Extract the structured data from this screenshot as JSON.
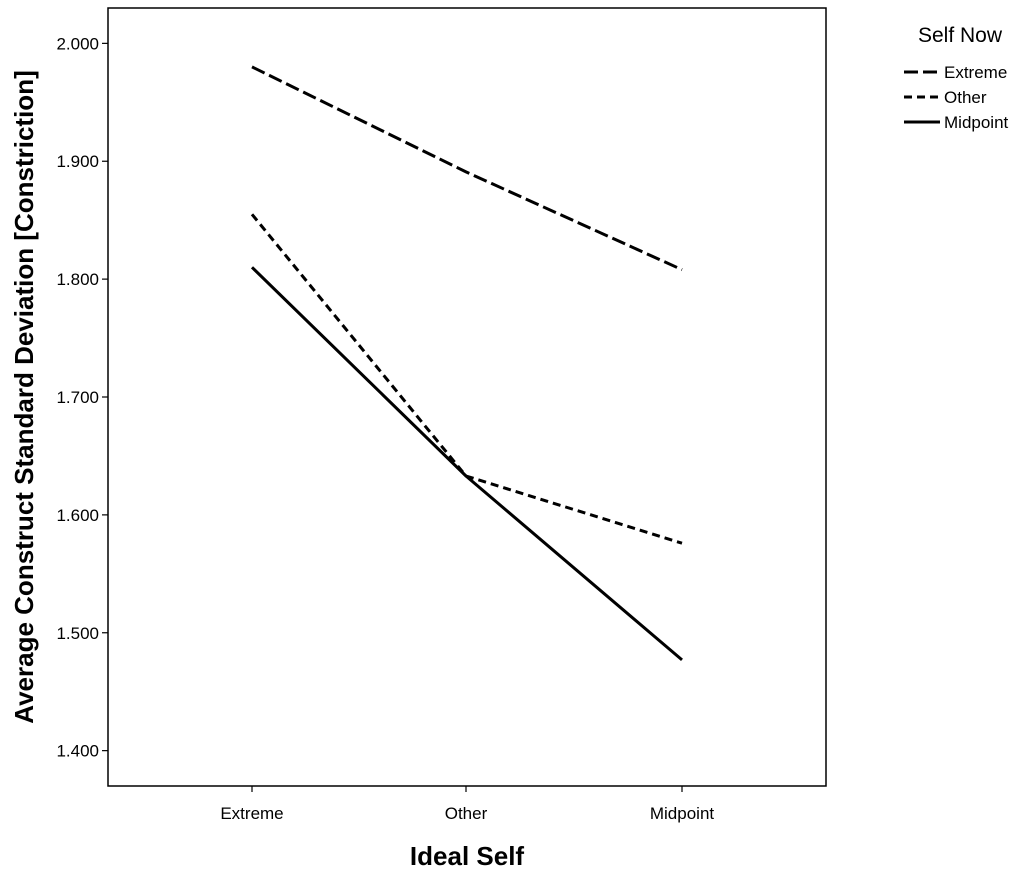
{
  "chart_data": {
    "type": "line",
    "title": "",
    "xlabel": "Ideal Self",
    "ylabel": "Average Construct Standard Deviation [Constriction]",
    "categories": [
      "Extreme",
      "Other",
      "Midpoint"
    ],
    "ylim": [
      1.37,
      2.03
    ],
    "yticks": [
      "1.400",
      "1.500",
      "1.600",
      "1.700",
      "1.800",
      "1.900",
      "2.000"
    ],
    "grid": false,
    "legend": {
      "title": "Self Now",
      "position": "top-right outside plot"
    },
    "series": [
      {
        "name": "Extreme",
        "values": [
          1.98,
          1.891,
          1.808
        ],
        "line_style": "long-dash",
        "color": "#000000"
      },
      {
        "name": "Other",
        "values": [
          1.855,
          1.633,
          1.576
        ],
        "line_style": "short-dash",
        "color": "#000000"
      },
      {
        "name": "Midpoint",
        "values": [
          1.81,
          1.633,
          1.477
        ],
        "line_style": "solid",
        "color": "#000000"
      }
    ]
  }
}
